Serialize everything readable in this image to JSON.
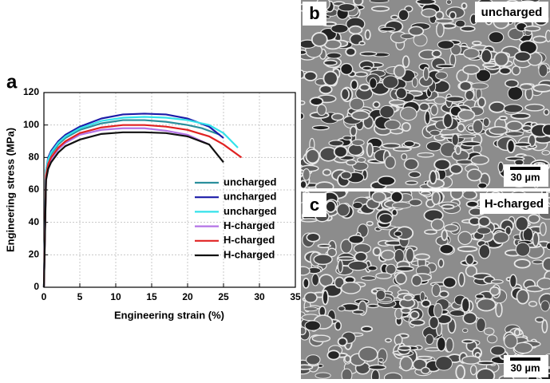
{
  "chart_data": {
    "type": "line",
    "panel_label": "a",
    "x_label": "Engineering strain (%)",
    "y_label": "Engineering stress (MPa)",
    "xlim": [
      0,
      35
    ],
    "xticks": [
      0,
      5,
      10,
      15,
      20,
      25,
      30,
      35
    ],
    "ylim": [
      0,
      120
    ],
    "yticks": [
      0,
      20,
      40,
      60,
      80,
      100,
      120
    ],
    "grid": true,
    "legend": "lower right",
    "series": [
      {
        "name": "uncharged",
        "color": "#2b8f9c",
        "x": [
          0,
          0.3,
          0.6,
          1,
          2,
          3,
          5,
          8,
          11,
          14,
          17,
          20,
          22,
          24.5
        ],
        "values": [
          0,
          70,
          78,
          82,
          88,
          92,
          97,
          101,
          103,
          103,
          102,
          100,
          98,
          94
        ]
      },
      {
        "name": "uncharged",
        "color": "#1c1ca8",
        "x": [
          0,
          0.3,
          0.6,
          1,
          2,
          3,
          5,
          8,
          11,
          14,
          17,
          20,
          23,
          25
        ],
        "values": [
          0,
          72,
          80,
          84,
          90,
          94,
          99,
          104,
          106.5,
          107,
          106.5,
          104,
          99,
          92
        ]
      },
      {
        "name": "uncharged",
        "color": "#33e2ea",
        "x": [
          0,
          0.3,
          0.6,
          1,
          2,
          3,
          5,
          8,
          11,
          14,
          17,
          20,
          23,
          25,
          27
        ],
        "values": [
          0,
          72,
          79,
          83,
          89,
          93,
          98,
          102.5,
          104.5,
          105,
          104.5,
          103,
          100,
          95,
          86
        ]
      },
      {
        "name": "H-charged",
        "color": "#b474e6",
        "x": [
          0,
          0.3,
          0.6,
          1,
          2,
          3,
          5,
          8,
          11,
          14,
          17,
          20,
          23
        ],
        "values": [
          0,
          68,
          75,
          79,
          85,
          89,
          94,
          97,
          98,
          98,
          96.5,
          94,
          88
        ]
      },
      {
        "name": "H-charged",
        "color": "#e02222",
        "x": [
          0,
          0.3,
          0.6,
          1,
          2,
          3,
          5,
          8,
          11,
          14,
          17,
          20,
          23,
          25,
          27.5
        ],
        "values": [
          0,
          69,
          76,
          80,
          86,
          90,
          95,
          98.5,
          100,
          100,
          99,
          97,
          93,
          88,
          80
        ]
      },
      {
        "name": "H-charged",
        "color": "#111111",
        "x": [
          0,
          0.3,
          0.6,
          1,
          2,
          3,
          5,
          8,
          11,
          14,
          17,
          20,
          23,
          25
        ],
        "values": [
          0,
          66,
          73,
          77,
          83,
          87,
          91,
          94.5,
          95.5,
          95.5,
          95,
          93,
          88,
          77
        ]
      }
    ]
  },
  "images": [
    {
      "label": "b",
      "caption": "uncharged",
      "scale_bar": "30 µm"
    },
    {
      "label": "c",
      "caption": "H-charged",
      "scale_bar": "30 µm"
    }
  ]
}
